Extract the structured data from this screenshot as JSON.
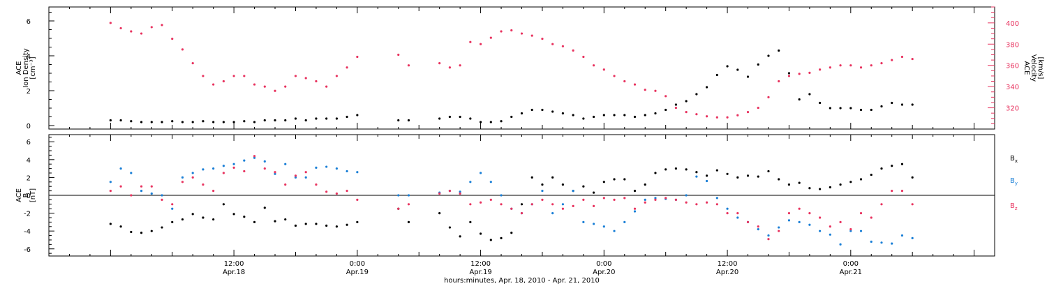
{
  "colors": {
    "density": "#000000",
    "velocity": "#e8335f",
    "bx": "#000000",
    "by": "#1a7fd6",
    "bz": "#e8335f",
    "frame": "#000000",
    "background": "#ffffff"
  },
  "chart_data": [
    {
      "type": "scatter",
      "panel": "top",
      "left_axis": {
        "label_lines": [
          "ACE",
          "Ion Density",
          "[cm⁻³]"
        ],
        "ylim": [
          -0.2,
          6.8
        ],
        "ticks": [
          0,
          2,
          4,
          6
        ],
        "tick_labels": [
          "0",
          "2",
          "4",
          "6"
        ]
      },
      "right_axis": {
        "label_lines": [
          "ACE",
          "Velocity",
          "[km/s]"
        ],
        "ylim": [
          300,
          415
        ],
        "ticks": [
          320,
          340,
          360,
          380,
          400
        ],
        "tick_labels": [
          "320",
          "340",
          "360",
          "380",
          "400"
        ]
      },
      "series": [
        {
          "key": "density",
          "axis": "left",
          "x_hours": [
            0,
            1,
            2,
            3,
            4,
            5,
            6,
            7,
            8,
            9,
            10,
            11,
            12,
            13,
            14,
            15,
            16,
            17,
            18,
            19,
            20,
            21,
            22,
            23,
            24,
            28,
            29,
            32,
            33,
            34,
            35,
            36,
            37,
            38,
            39,
            40,
            41,
            42,
            43,
            44,
            45,
            46,
            47,
            48,
            49,
            50,
            51,
            52,
            53,
            54,
            55,
            56,
            57,
            58,
            59,
            60,
            61,
            62,
            63,
            64,
            65,
            66,
            67,
            68,
            69,
            70,
            71,
            72,
            73,
            74,
            75,
            76,
            77,
            78
          ],
          "values": [
            0.3,
            0.3,
            0.25,
            0.2,
            0.2,
            0.2,
            0.25,
            0.2,
            0.2,
            0.25,
            0.2,
            0.2,
            0.2,
            0.25,
            0.2,
            0.3,
            0.3,
            0.3,
            0.4,
            0.3,
            0.4,
            0.4,
            0.4,
            0.5,
            0.6,
            0.3,
            0.3,
            0.4,
            0.5,
            0.5,
            0.4,
            0.2,
            0.2,
            0.25,
            0.5,
            0.7,
            0.9,
            0.9,
            0.8,
            0.7,
            0.6,
            0.4,
            0.5,
            0.6,
            0.6,
            0.6,
            0.5,
            0.6,
            0.7,
            0.9,
            1.2,
            1.4,
            1.8,
            2.2,
            2.9,
            3.4,
            3.2,
            2.8,
            3.5,
            4.0,
            4.3,
            3.0,
            1.5,
            1.8,
            1.3,
            1.0,
            1.0,
            1.0,
            0.9,
            0.9,
            1.1,
            1.3,
            1.2,
            1.2
          ]
        },
        {
          "key": "velocity",
          "axis": "right",
          "x_hours": [
            0,
            1,
            2,
            3,
            4,
            5,
            6,
            7,
            8,
            9,
            10,
            11,
            12,
            13,
            14,
            15,
            16,
            17,
            18,
            19,
            20,
            21,
            22,
            23,
            24,
            28,
            29,
            32,
            33,
            34,
            35,
            36,
            37,
            38,
            39,
            40,
            41,
            42,
            43,
            44,
            45,
            46,
            47,
            48,
            49,
            50,
            51,
            52,
            53,
            54,
            55,
            56,
            57,
            58,
            59,
            60,
            61,
            62,
            63,
            64,
            65,
            66,
            67,
            68,
            69,
            70,
            71,
            72,
            73,
            74,
            75,
            76,
            77,
            78
          ],
          "values": [
            400,
            395,
            392,
            390,
            396,
            398,
            385,
            375,
            362,
            350,
            342,
            345,
            350,
            350,
            342,
            340,
            336,
            340,
            350,
            348,
            345,
            340,
            350,
            358,
            368,
            370,
            360,
            362,
            358,
            360,
            382,
            380,
            386,
            392,
            393,
            390,
            388,
            385,
            380,
            378,
            374,
            368,
            360,
            356,
            350,
            345,
            342,
            337,
            336,
            331,
            320,
            316,
            314,
            312,
            311,
            311,
            313,
            316,
            320,
            330,
            345,
            350,
            352,
            353,
            356,
            358,
            360,
            360,
            358,
            360,
            362,
            365,
            368,
            366
          ]
        }
      ]
    },
    {
      "type": "scatter",
      "panel": "bottom",
      "left_axis": {
        "label_lines": [
          "ACE",
          "B",
          "[nT]"
        ],
        "ylim": [
          -6.8,
          6.8
        ],
        "ticks": [
          -6,
          -4,
          -2,
          0,
          2,
          4,
          6
        ],
        "tick_labels": [
          "-6",
          "-4",
          "-2",
          "0",
          "2",
          "4",
          "6"
        ]
      },
      "x_axis": {
        "label": "hours:minutes, Apr. 18, 2010 - Apr. 21, 2010",
        "xlim_hours": [
          -6,
          86
        ],
        "major_ticks_hours": [
          12,
          24,
          36,
          48,
          60,
          72
        ],
        "major_tick_labels": [
          {
            "time": "12:00",
            "date": "Apr.18"
          },
          {
            "time": "0:00",
            "date": "Apr.19"
          },
          {
            "time": "12:00",
            "date": "Apr.19"
          },
          {
            "time": "0:00",
            "date": "Apr.20"
          },
          {
            "time": "12:00",
            "date": "Apr.20"
          },
          {
            "time": "0:00",
            "date": "Apr.21"
          }
        ]
      },
      "legend_placement": "right",
      "legend": [
        {
          "key": "bx",
          "main": "B",
          "sub": "x"
        },
        {
          "key": "by",
          "main": "B",
          "sub": "y"
        },
        {
          "key": "bz",
          "main": "B",
          "sub": "z"
        }
      ],
      "series": [
        {
          "key": "bx",
          "x_hours": [
            0,
            1,
            2,
            3,
            4,
            5,
            6,
            7,
            8,
            9,
            10,
            11,
            12,
            13,
            14,
            15,
            16,
            17,
            18,
            19,
            20,
            21,
            22,
            23,
            24,
            28,
            29,
            32,
            33,
            34,
            35,
            36,
            37,
            38,
            39,
            40,
            41,
            42,
            43,
            44,
            45,
            46,
            47,
            48,
            49,
            50,
            51,
            52,
            53,
            54,
            55,
            56,
            57,
            58,
            59,
            60,
            61,
            62,
            63,
            64,
            65,
            66,
            67,
            68,
            69,
            70,
            71,
            72,
            73,
            74,
            75,
            76,
            77,
            78
          ],
          "values": [
            -3.2,
            -3.5,
            -4.1,
            -4.2,
            -4.0,
            -3.6,
            -3.0,
            -2.7,
            -2.1,
            -2.5,
            -2.7,
            -1.0,
            -2.1,
            -2.4,
            -3.0,
            -1.4,
            -2.9,
            -2.7,
            -3.4,
            -3.2,
            -3.2,
            -3.4,
            -3.5,
            -3.3,
            -3.0,
            -1.5,
            -3.0,
            -2.0,
            -3.6,
            -4.6,
            -3.0,
            -4.3,
            -5.0,
            -4.8,
            -4.2,
            -1.0,
            2.0,
            1.2,
            2.0,
            1.2,
            0.5,
            1.0,
            0.3,
            1.5,
            1.8,
            1.8,
            0.5,
            1.2,
            2.5,
            2.9,
            3.0,
            2.9,
            2.6,
            2.2,
            2.8,
            2.4,
            2.0,
            2.2,
            2.1,
            2.7,
            1.8,
            1.2,
            1.4,
            0.8,
            0.7,
            0.9,
            1.2,
            1.5,
            1.8,
            2.3,
            3.0,
            3.3,
            3.5,
            2.0
          ]
        },
        {
          "key": "by",
          "x_hours": [
            0,
            1,
            2,
            3,
            4,
            5,
            6,
            7,
            8,
            9,
            10,
            11,
            12,
            13,
            14,
            15,
            16,
            17,
            18,
            19,
            20,
            21,
            22,
            23,
            24,
            28,
            29,
            32,
            33,
            34,
            35,
            36,
            37,
            38,
            39,
            40,
            41,
            42,
            43,
            44,
            45,
            46,
            47,
            48,
            49,
            50,
            51,
            52,
            53,
            54,
            55,
            56,
            57,
            58,
            59,
            60,
            61,
            62,
            63,
            64,
            65,
            66,
            67,
            68,
            69,
            70,
            71,
            72,
            73,
            74,
            75,
            76,
            77,
            78
          ],
          "values": [
            1.5,
            3.0,
            2.5,
            0.5,
            0.2,
            0.0,
            -1.5,
            2.0,
            2.5,
            2.9,
            3.0,
            3.3,
            3.5,
            3.9,
            4.2,
            3.8,
            2.4,
            3.5,
            2.0,
            2.0,
            3.1,
            3.2,
            3.0,
            2.7,
            2.6,
            0.0,
            0.0,
            0.3,
            0.5,
            0.4,
            1.5,
            2.5,
            1.5,
            0.0,
            -1.5,
            -2.0,
            -1.0,
            0.5,
            -2.0,
            -1.0,
            0.5,
            -3.0,
            -3.2,
            -3.5,
            -4.0,
            -3.0,
            -1.8,
            -0.5,
            -0.3,
            -0.4,
            -0.5,
            0.0,
            2.1,
            1.6,
            -0.3,
            -1.5,
            -2.5,
            -3.0,
            -3.8,
            -4.5,
            -3.6,
            -2.8,
            -3.0,
            -3.3,
            -4.0,
            -4.4,
            -5.5,
            -4.0,
            -4.0,
            -5.2,
            -5.3,
            -5.4,
            -4.5,
            -4.8
          ]
        },
        {
          "key": "bz",
          "x_hours": [
            0,
            1,
            2,
            3,
            4,
            5,
            6,
            7,
            8,
            9,
            10,
            11,
            12,
            13,
            14,
            15,
            16,
            17,
            18,
            19,
            20,
            21,
            22,
            23,
            24,
            28,
            29,
            32,
            33,
            34,
            35,
            36,
            37,
            38,
            39,
            40,
            41,
            42,
            43,
            44,
            45,
            46,
            47,
            48,
            49,
            50,
            51,
            52,
            53,
            54,
            55,
            56,
            57,
            58,
            59,
            60,
            61,
            62,
            63,
            64,
            65,
            66,
            67,
            68,
            69,
            70,
            71,
            72,
            73,
            74,
            75,
            76,
            77,
            78
          ],
          "values": [
            0.5,
            1.0,
            0.0,
            1.0,
            1.0,
            -0.5,
            -1.0,
            1.5,
            2.0,
            1.2,
            0.5,
            2.5,
            3.1,
            2.7,
            4.4,
            3.0,
            2.6,
            1.2,
            2.2,
            2.6,
            1.2,
            0.4,
            0.2,
            0.5,
            -0.5,
            -1.5,
            -1.0,
            0.2,
            0.5,
            0.2,
            -1.0,
            -0.8,
            -0.5,
            -1.0,
            -1.5,
            -2.0,
            -1.0,
            -0.5,
            -1.0,
            -1.5,
            -1.2,
            -0.5,
            -1.2,
            -0.3,
            -0.5,
            -0.3,
            -1.5,
            -0.8,
            -0.5,
            -0.3,
            -0.5,
            -0.8,
            -1.0,
            -0.8,
            -1.0,
            -2.0,
            -2.0,
            -3.0,
            -3.5,
            -4.9,
            -4.0,
            -2.0,
            -1.5,
            -2.0,
            -2.5,
            -3.5,
            -3.0,
            -3.8,
            -2.0,
            -2.5,
            -1.0,
            0.5,
            0.5,
            -1.0
          ]
        }
      ]
    }
  ]
}
